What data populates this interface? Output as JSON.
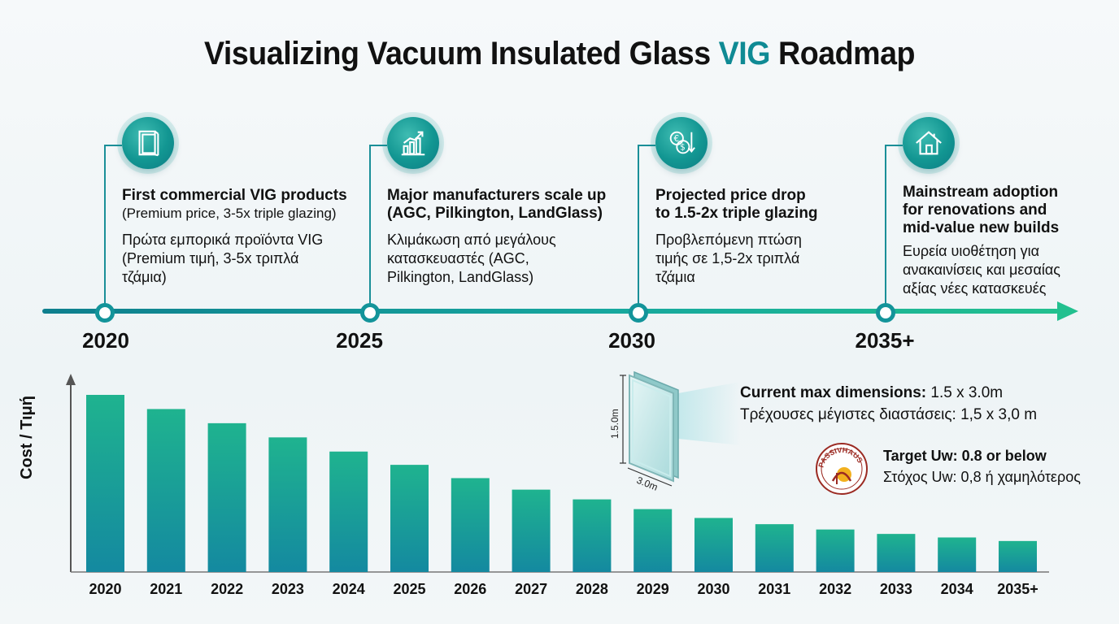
{
  "title": {
    "main": "Visualizing Vacuum Insulated Glass",
    "accent": "VIG",
    "end": "Roadmap"
  },
  "colors": {
    "accent": "#0f8a94",
    "bar_top": "#1fb38f",
    "bar_bottom": "#1489a0",
    "node": "#13949a"
  },
  "timeline": {
    "milestones": [
      {
        "year": "2020",
        "icon": "window-icon",
        "heading": "First commercial VIG products",
        "sub": "(Premium price, 3-5x triple glazing)",
        "greek_1": "Πρώτα εμπορικά προϊόντα VIG",
        "greek_2": "(Premium τιμή, 3-5x τριπλά",
        "greek_3": "τζάμια)"
      },
      {
        "year": "2025",
        "icon": "growth-chart-icon",
        "heading": "Major manufacturers scale up",
        "sub": "(AGC, Pilkington, LandGlass)",
        "greek_1": "Κλιμάκωση από μεγάλους",
        "greek_2": "κατασκευαστές (AGC,",
        "greek_3": "Pilkington, LandGlass)"
      },
      {
        "year": "2030",
        "icon": "currency-exchange-icon",
        "heading": "Projected price drop",
        "sub": "to 1.5-2x triple glazing",
        "greek_1": "Προβλεπόμενη πτώση",
        "greek_2": "τιμής σε 1,5-2x τριπλά",
        "greek_3": "τζάμια"
      },
      {
        "year": "2035+",
        "icon": "house-icon",
        "heading": "Mainstream adoption",
        "sub": "for renovations and",
        "sub2": "mid-value new builds",
        "greek_1": "Ευρεία υιοθέτηση για",
        "greek_2": "ανακαινίσεις και μεσαίας",
        "greek_3": "αξίας νέες κατασκευές"
      }
    ]
  },
  "glass": {
    "height_label": "1.5.0m",
    "width_label": "3.0m",
    "dims_label": "Current max dimensions:",
    "dims_value": " 1.5 x 3.0m",
    "dims_greek": "Τρέχουσες μέγιστες διαστάσεις: 1,5 x 3,0 m"
  },
  "target": {
    "seal_text": "PASSIVHAUS",
    "label": "Target Uw: 0.8 or below",
    "greek": "Στόχος Uw: 0,8 ή χαμηλότερος"
  },
  "chart_data": {
    "type": "bar",
    "title": "",
    "xlabel": "",
    "ylabel": "Cost / Τιμή",
    "categories": [
      "2020",
      "2021",
      "2022",
      "2023",
      "2024",
      "2025",
      "2026",
      "2027",
      "2028",
      "2029",
      "2030",
      "2031",
      "2032",
      "2033",
      "2034",
      "2035+"
    ],
    "values": [
      100,
      92,
      84,
      76,
      68,
      60.5,
      53,
      46.5,
      41,
      35.5,
      30.5,
      27,
      24,
      21.5,
      19.5,
      17.5
    ],
    "ylim": [
      0,
      100
    ],
    "grid": false
  }
}
